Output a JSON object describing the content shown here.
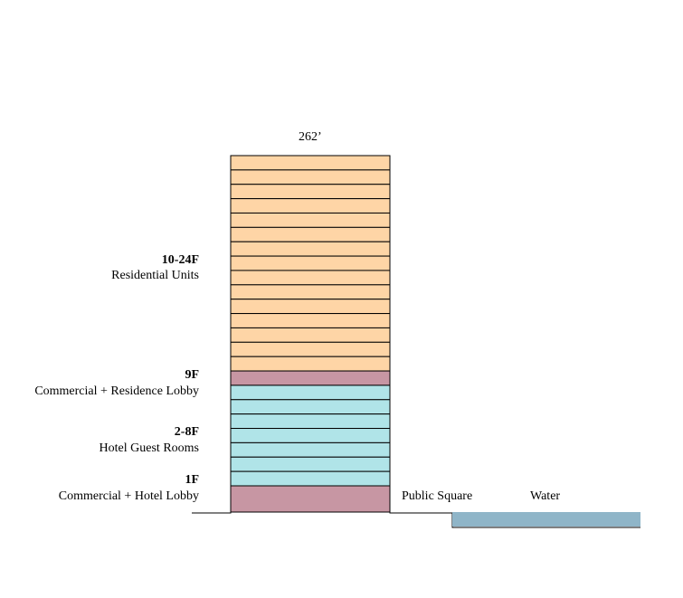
{
  "height_label": "262’",
  "floor_groups": [
    {
      "floors": "10-24F",
      "use": "Residential Units",
      "count": 15,
      "color": "#fed5a6"
    },
    {
      "floors": "9F",
      "use": "Commercial + Residence Lobby",
      "count": 1,
      "color": "#c796a3"
    },
    {
      "floors": "2-8F",
      "use": "Hotel Guest Rooms",
      "count": 7,
      "color": "#b0e4e8"
    },
    {
      "floors": "1F",
      "use": "Commercial + Hotel Lobby",
      "count": 1,
      "color": "#c796a3"
    }
  ],
  "site_labels": {
    "public_square": "Public Square",
    "water": "Water"
  },
  "water_color": "#8fb5c8"
}
